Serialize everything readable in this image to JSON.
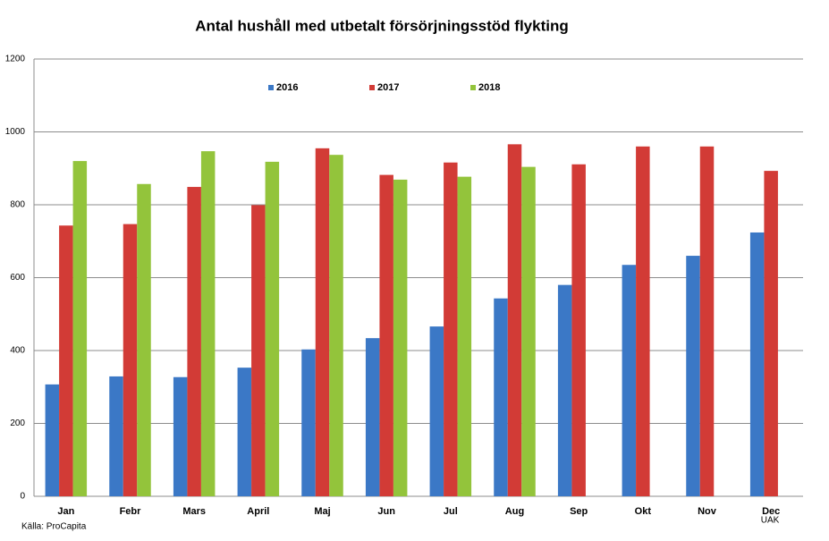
{
  "chart_data": {
    "type": "bar",
    "title": "Antal hushåll med utbetalt försörjningsstöd flykting",
    "categories": [
      "Jan",
      "Febr",
      "Mars",
      "April",
      "Maj",
      "Jun",
      "Jul",
      "Aug",
      "Sep",
      "Okt",
      "Nov",
      "Dec"
    ],
    "series": [
      {
        "name": "2016",
        "color": "#3b78c6",
        "values": [
          307,
          329,
          327,
          353,
          403,
          434,
          466,
          543,
          580,
          635,
          660,
          724
        ]
      },
      {
        "name": "2017",
        "color": "#d23b36",
        "values": [
          743,
          747,
          849,
          799,
          955,
          882,
          916,
          966,
          911,
          960,
          960,
          893
        ]
      },
      {
        "name": "2018",
        "color": "#93c43b",
        "values": [
          920,
          857,
          947,
          918,
          937,
          869,
          877,
          904,
          null,
          null,
          null,
          null
        ]
      }
    ],
    "ylim": [
      0,
      1200
    ],
    "yticks": [
      0,
      200,
      400,
      600,
      800,
      1000,
      1200
    ],
    "grid": true,
    "source": "Källa: ProCapita",
    "note": "UAK"
  }
}
